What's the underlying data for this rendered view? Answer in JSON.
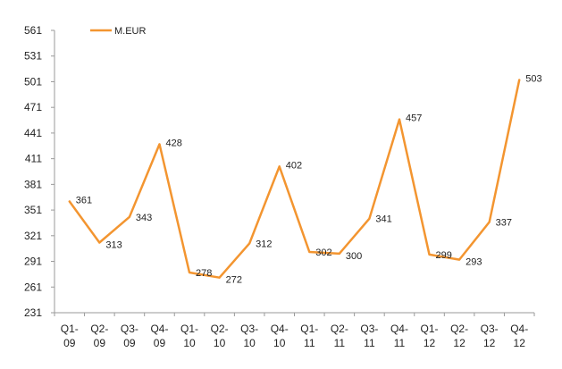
{
  "chart_data": {
    "type": "line",
    "title": "",
    "xlabel": "",
    "ylabel": "",
    "categories": [
      [
        "Q1-",
        "09"
      ],
      [
        "Q2-",
        "09"
      ],
      [
        "Q3-",
        "09"
      ],
      [
        "Q4-",
        "09"
      ],
      [
        "Q1-",
        "10"
      ],
      [
        "Q2-",
        "10"
      ],
      [
        "Q3-",
        "10"
      ],
      [
        "Q4-",
        "10"
      ],
      [
        "Q1-",
        "11"
      ],
      [
        "Q2-",
        "11"
      ],
      [
        "Q3-",
        "11"
      ],
      [
        "Q4-",
        "11"
      ],
      [
        "Q1-",
        "12"
      ],
      [
        "Q2-",
        "12"
      ],
      [
        "Q3-",
        "12"
      ],
      [
        "Q4-",
        "12"
      ]
    ],
    "series": [
      {
        "name": "M.EUR",
        "color": "#f39530",
        "values": [
          361,
          313,
          343,
          428,
          278,
          272,
          312,
          402,
          302,
          300,
          341,
          457,
          299,
          293,
          337,
          503
        ]
      }
    ],
    "ylim": [
      231,
      561
    ],
    "yticks": [
      231,
      261,
      291,
      321,
      351,
      381,
      411,
      441,
      471,
      501,
      531,
      561
    ],
    "grid": false,
    "legend": "top-left"
  }
}
